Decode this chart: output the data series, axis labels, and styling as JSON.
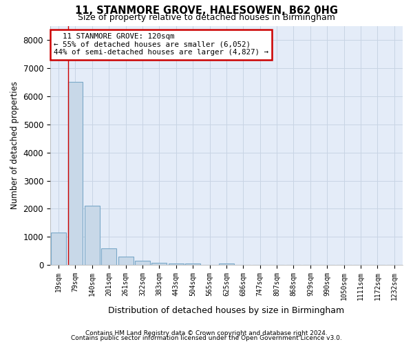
{
  "title1": "11, STANMORE GROVE, HALESOWEN, B62 0HG",
  "title2": "Size of property relative to detached houses in Birmingham",
  "xlabel": "Distribution of detached houses by size in Birmingham",
  "ylabel": "Number of detached properties",
  "footer1": "Contains HM Land Registry data © Crown copyright and database right 2024.",
  "footer2": "Contains public sector information licensed under the Open Government Licence v3.0.",
  "bar_labels": [
    "19sqm",
    "79sqm",
    "140sqm",
    "201sqm",
    "261sqm",
    "322sqm",
    "383sqm",
    "443sqm",
    "504sqm",
    "565sqm",
    "625sqm",
    "686sqm",
    "747sqm",
    "807sqm",
    "868sqm",
    "929sqm",
    "990sqm",
    "1050sqm",
    "1111sqm",
    "1172sqm",
    "1232sqm"
  ],
  "bar_values": [
    1150,
    6500,
    2100,
    600,
    300,
    150,
    90,
    55,
    55,
    0,
    60,
    0,
    0,
    0,
    0,
    0,
    0,
    0,
    0,
    0,
    0
  ],
  "bar_color": "#c8d8e8",
  "bar_edgecolor": "#7aa8c8",
  "property_label": "11 STANMORE GROVE: 120sqm",
  "pct_smaller": 55,
  "count_smaller": 6052,
  "pct_larger": 44,
  "count_larger": 4827,
  "annotation_box_color": "#ffffff",
  "annotation_box_edgecolor": "#cc0000",
  "grid_color": "#c8d4e4",
  "bg_color": "#e4ecf8",
  "ylim": [
    0,
    8500
  ],
  "yticks": [
    0,
    1000,
    2000,
    3000,
    4000,
    5000,
    6000,
    7000,
    8000
  ],
  "redline_x": 0.58
}
